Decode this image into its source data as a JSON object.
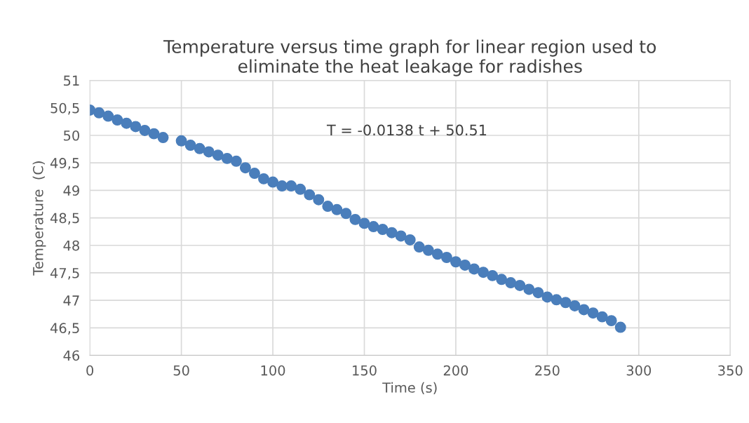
{
  "chart_data": {
    "type": "scatter",
    "title": "Temperature versus time graph for linear region used to\neliminate the heat leakage for radishes",
    "xlabel": "Time (s)",
    "ylabel": "Temperature  (C)",
    "annotations": [
      "T = -0.0138 t + 50.51"
    ],
    "x": [
      0,
      5,
      10,
      15,
      20,
      25,
      30,
      35,
      40,
      50,
      55,
      60,
      65,
      70,
      75,
      80,
      85,
      90,
      95,
      100,
      105,
      110,
      115,
      120,
      125,
      130,
      135,
      140,
      145,
      150,
      155,
      160,
      165,
      170,
      175,
      180,
      185,
      190,
      195,
      200,
      205,
      210,
      215,
      220,
      225,
      230,
      235,
      240,
      245,
      250,
      255,
      260,
      265,
      270,
      275,
      280,
      285,
      290
    ],
    "series": [
      {
        "color": "#4a7ebb",
        "values": [
          50.46,
          50.41,
          50.35,
          50.28,
          50.22,
          50.16,
          50.09,
          50.03,
          49.96,
          49.9,
          49.82,
          49.76,
          49.7,
          49.64,
          49.58,
          49.53,
          49.41,
          49.31,
          49.21,
          49.15,
          49.08,
          49.08,
          49.02,
          48.92,
          48.83,
          48.71,
          48.65,
          48.58,
          48.47,
          48.4,
          48.34,
          48.29,
          48.23,
          48.17,
          48.1,
          47.97,
          47.91,
          47.84,
          47.78,
          47.7,
          47.64,
          47.57,
          47.51,
          47.45,
          47.38,
          47.32,
          47.27,
          47.2,
          47.14,
          47.06,
          47.01,
          46.96,
          46.9,
          46.83,
          46.77,
          46.7,
          46.63,
          46.51
        ]
      }
    ],
    "xlim": [
      0,
      350
    ],
    "xticks": [
      0,
      50,
      100,
      150,
      200,
      250,
      300,
      350
    ],
    "ylim": [
      46,
      51
    ],
    "yticks": [
      46,
      {
        "value": 46.5,
        "label": "46,5"
      },
      47,
      {
        "value": 47.5,
        "label": "47,5"
      },
      48,
      {
        "value": 48.5,
        "label": "48,5"
      },
      49,
      {
        "value": 49.5,
        "label": "49,5"
      },
      50,
      {
        "value": 50.5,
        "label": "50,5"
      },
      51
    ],
    "grid": true,
    "marker": "circle"
  }
}
